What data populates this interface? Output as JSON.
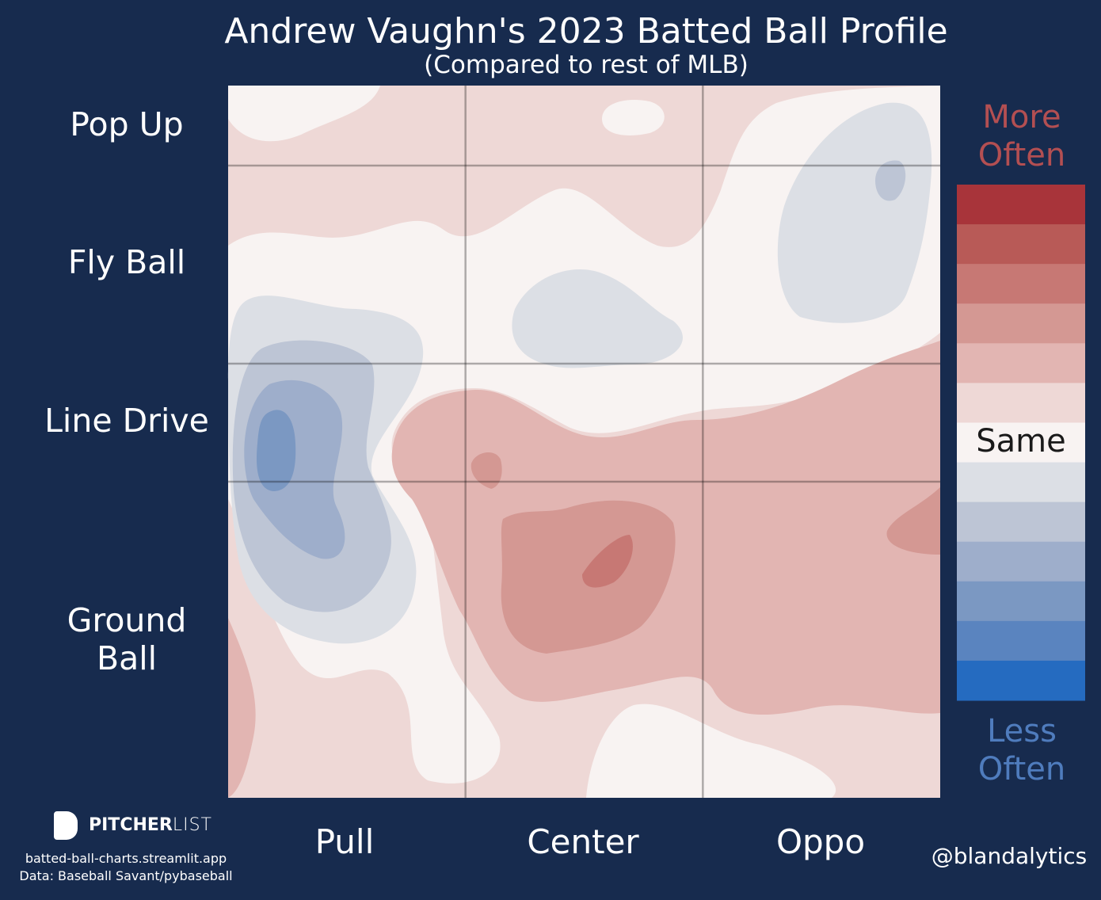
{
  "chart_data": {
    "type": "contour",
    "title": "Andrew Vaughn's 2023 Batted Ball Profile",
    "subtitle": "(Compared to rest of MLB)",
    "x_categories": [
      "Pull",
      "Center",
      "Oppo"
    ],
    "y_categories": [
      "Pop Up",
      "Fly Ball",
      "Line Drive",
      "Ground Ball"
    ],
    "grid": true,
    "colorbar": {
      "top_label": "More Often",
      "middle_label": "Same",
      "bottom_label": "Less Often",
      "colors": [
        "#a8343a",
        "#b85a57",
        "#c77874",
        "#d49893",
        "#e2b5b2",
        "#eed8d6",
        "#f8f3f2",
        "#dcdfe5",
        "#bdc5d5",
        "#9eaecb",
        "#7b98c2",
        "#5a84bf",
        "#256bc0"
      ]
    },
    "logo": {
      "bold": "PITCHER",
      "light": "LIST"
    },
    "site": "batted-ball-charts.streamlit.app",
    "source": "Data: Baseball Savant/pybaseball",
    "handle": "@blandalytics"
  }
}
